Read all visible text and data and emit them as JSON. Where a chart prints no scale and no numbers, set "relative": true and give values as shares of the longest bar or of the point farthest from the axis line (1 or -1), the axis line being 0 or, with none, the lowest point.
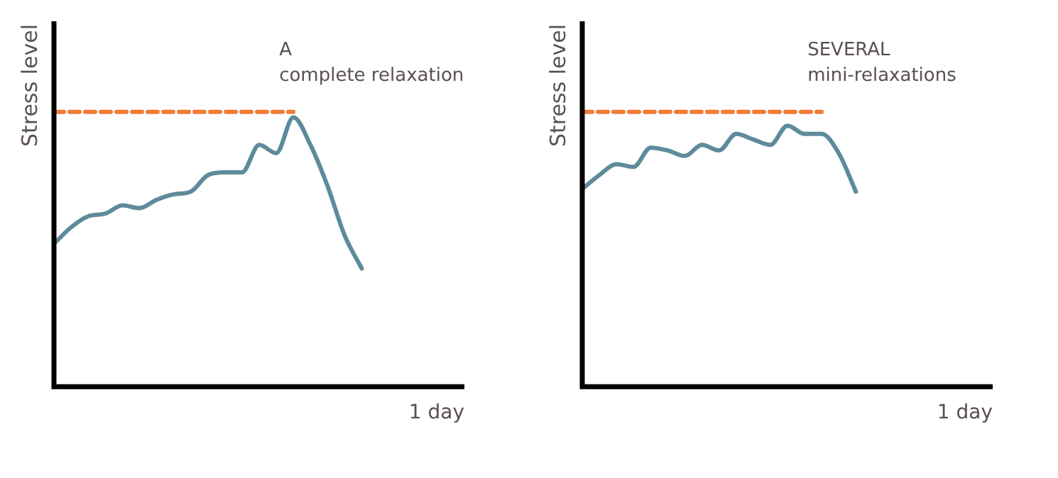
{
  "chart_data": [
    {
      "type": "line",
      "relative": true,
      "ylabel": "Stress level",
      "xlabel": "1 day",
      "annotations": [
        "A",
        "complete relaxation"
      ],
      "marker": "none",
      "categories": [
        null,
        null,
        null,
        null,
        null,
        null,
        null,
        null,
        null,
        null,
        null,
        null,
        null,
        null,
        null,
        null,
        null,
        null,
        null,
        null,
        null,
        null,
        null,
        null,
        null
      ],
      "series": [
        {
          "color": "#5e8b9b",
          "values": [
            0.52,
            0.58,
            0.62,
            0.63,
            0.66,
            0.65,
            0.68,
            0.7,
            0.71,
            0.77,
            0.78,
            0.78,
            0.88,
            0.85,
            0.98,
            0.88,
            0.73,
            0.55,
            0.43,
            null,
            null,
            null,
            null,
            null,
            null
          ]
        },
        {
          "color": "#f07c36",
          "line_style": "dashed",
          "values": [
            1,
            1,
            1,
            1,
            1,
            1,
            1,
            1,
            1,
            1,
            1,
            1,
            1,
            1,
            1,
            null,
            null,
            null,
            null,
            null,
            null,
            null,
            null,
            null,
            null
          ]
        }
      ]
    },
    {
      "type": "line",
      "relative": true,
      "ylabel": "Stress level",
      "xlabel": "1 day",
      "annotations": [
        "SEVERAL",
        "mini-relaxations"
      ],
      "marker": "none",
      "categories": [
        null,
        null,
        null,
        null,
        null,
        null,
        null,
        null,
        null,
        null,
        null,
        null,
        null,
        null,
        null,
        null,
        null,
        null,
        null,
        null,
        null,
        null,
        null,
        null,
        null
      ],
      "series": [
        {
          "color": "#5e8b9b",
          "values": [
            0.72,
            0.77,
            0.81,
            0.8,
            0.87,
            0.86,
            0.84,
            0.88,
            0.86,
            0.92,
            0.9,
            0.88,
            0.95,
            0.92,
            0.92,
            0.85,
            0.71,
            null,
            null,
            null,
            null,
            null,
            null,
            null,
            null
          ]
        },
        {
          "color": "#f07c36",
          "line_style": "dashed",
          "values": [
            1,
            1,
            1,
            1,
            1,
            1,
            1,
            1,
            1,
            1,
            1,
            1,
            1,
            1,
            1,
            null,
            null,
            null,
            null,
            null,
            null,
            null,
            null,
            null,
            null
          ]
        }
      ]
    }
  ]
}
